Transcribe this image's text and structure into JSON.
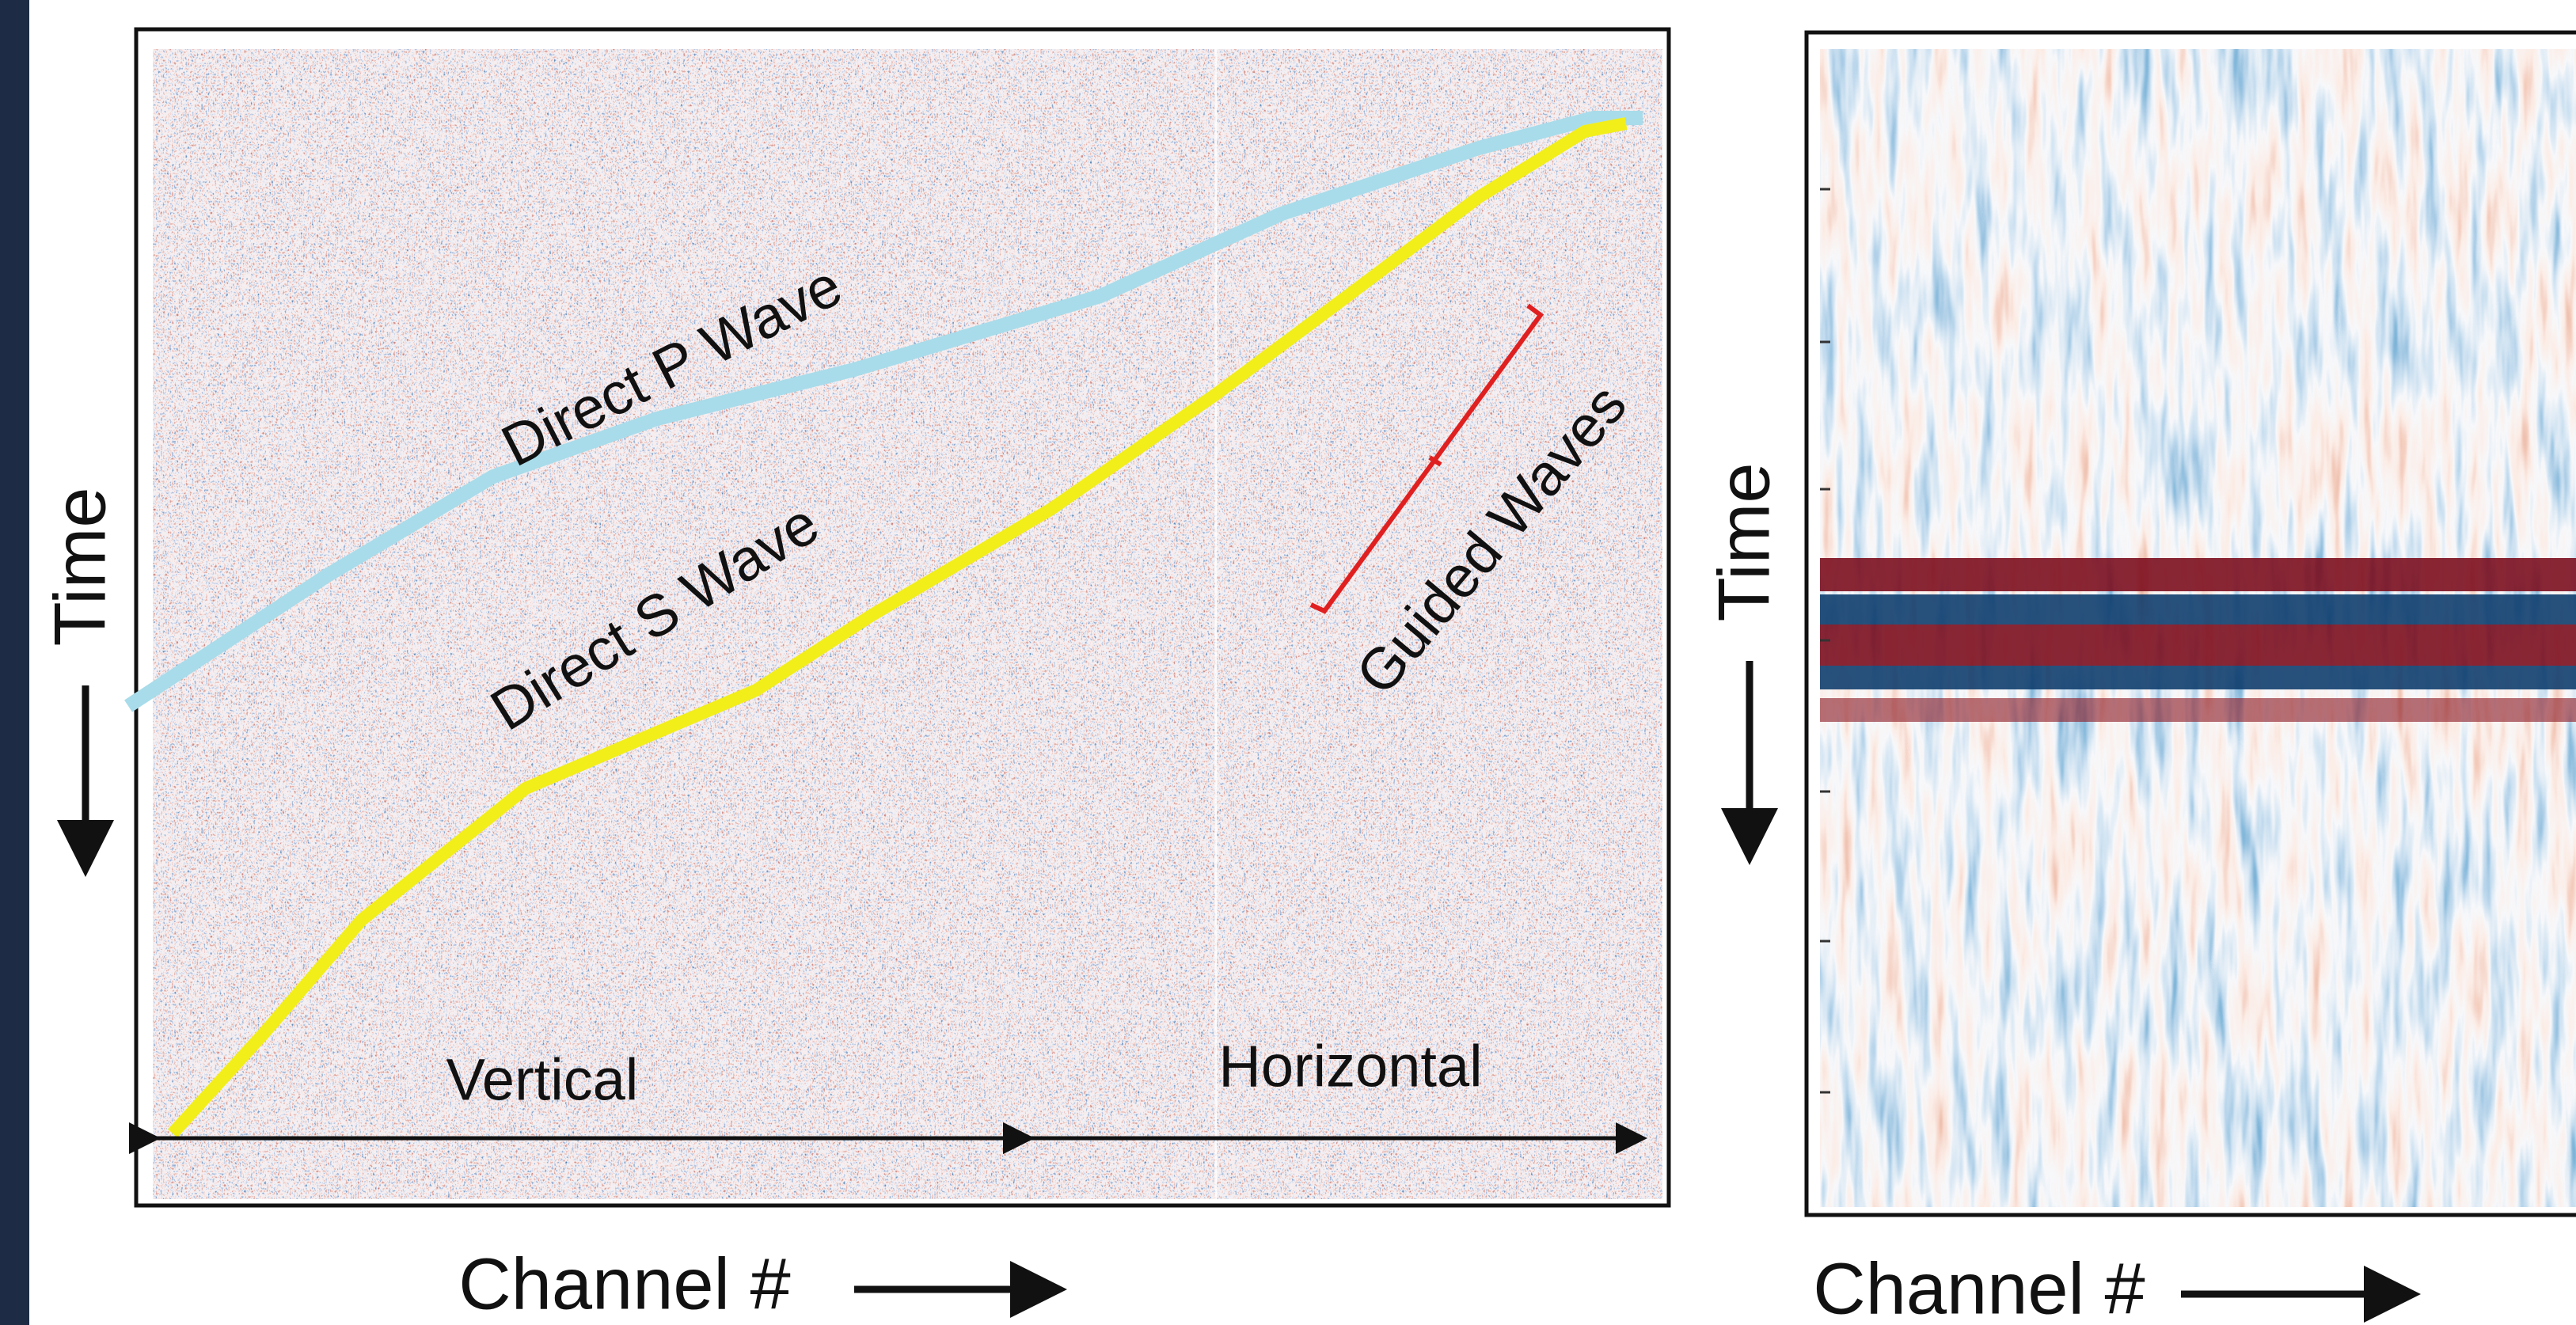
{
  "left_panel": {
    "annotations": {
      "p_wave": "Direct P Wave",
      "s_wave": "Direct S Wave",
      "guided_waves": "Guided Waves",
      "vertical": "Vertical",
      "horizontal": "Horizontal"
    },
    "y_axis_label": "Time",
    "x_axis_label": "Channel #"
  },
  "right_panel": {
    "y_axis_label": "Time",
    "x_axis_label": "Channel #"
  }
}
